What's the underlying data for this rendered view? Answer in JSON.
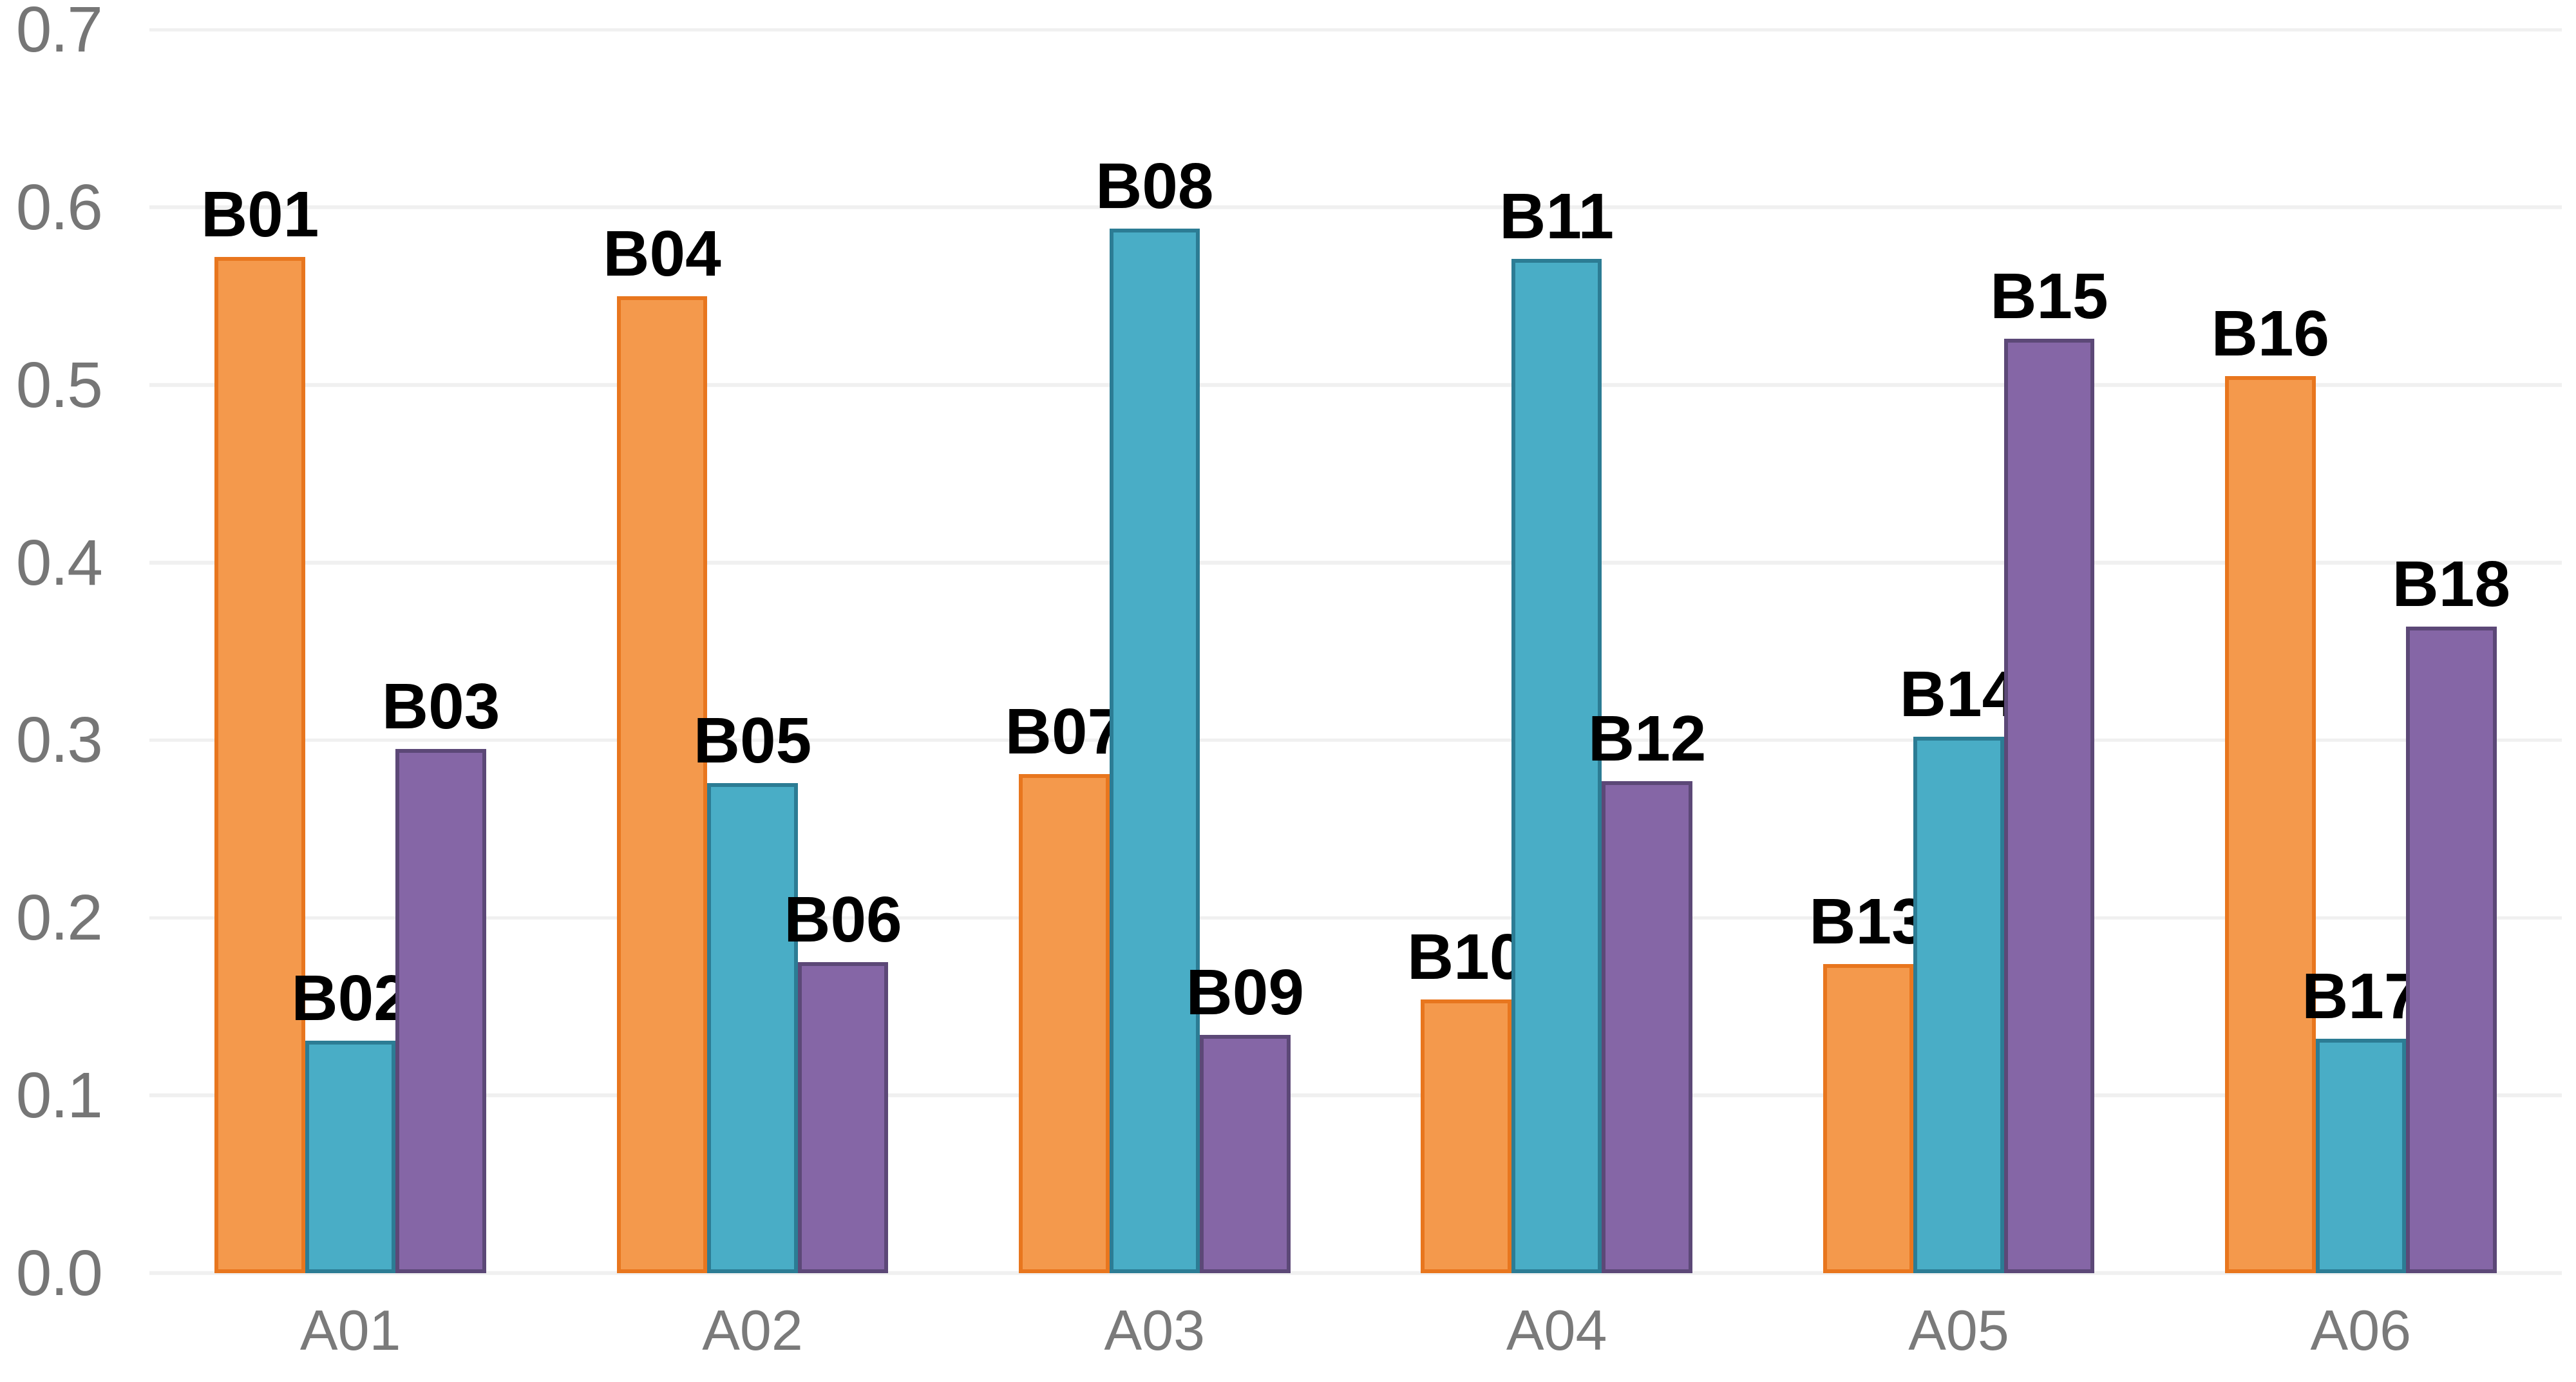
{
  "chart_data": {
    "type": "bar",
    "title": "",
    "xlabel": "",
    "ylabel": "",
    "categories": [
      "A01",
      "A02",
      "A03",
      "A04",
      "A05",
      "A06"
    ],
    "series": [
      {
        "name": "series-1-orange",
        "color_key": "orange",
        "bar_labels": [
          "B01",
          "B04",
          "B07",
          "B10",
          "B13",
          "B16"
        ],
        "values": [
          0.572,
          0.55,
          0.281,
          0.154,
          0.174,
          0.505
        ]
      },
      {
        "name": "series-2-teal",
        "color_key": "teal",
        "bar_labels": [
          "B02",
          "B05",
          "B08",
          "B11",
          "B14",
          "B17"
        ],
        "values": [
          0.131,
          0.276,
          0.588,
          0.571,
          0.302,
          0.132
        ]
      },
      {
        "name": "series-3-purple",
        "color_key": "purple",
        "bar_labels": [
          "B03",
          "B06",
          "B09",
          "B12",
          "B15",
          "B18"
        ],
        "values": [
          0.295,
          0.175,
          0.134,
          0.277,
          0.526,
          0.364
        ]
      }
    ],
    "ylim": [
      0,
      0.7
    ],
    "yticks": [
      "0.0",
      "0.1",
      "0.2",
      "0.3",
      "0.4",
      "0.5",
      "0.6",
      "0.7"
    ],
    "grid": true,
    "legend": false,
    "colors": {
      "orange": {
        "fill": "#F4994C",
        "stroke": "#E8761E"
      },
      "teal": {
        "fill": "#49ADC6",
        "stroke": "#2C7C94"
      },
      "purple": {
        "fill": "#8566A6",
        "stroke": "#5C4877"
      },
      "gridline": "#F0F0F0",
      "axis_tick_text": "#767676",
      "x_tick_text": "#7A7A7A",
      "bar_label_text": "#000000",
      "background": "#FFFFFF"
    }
  }
}
